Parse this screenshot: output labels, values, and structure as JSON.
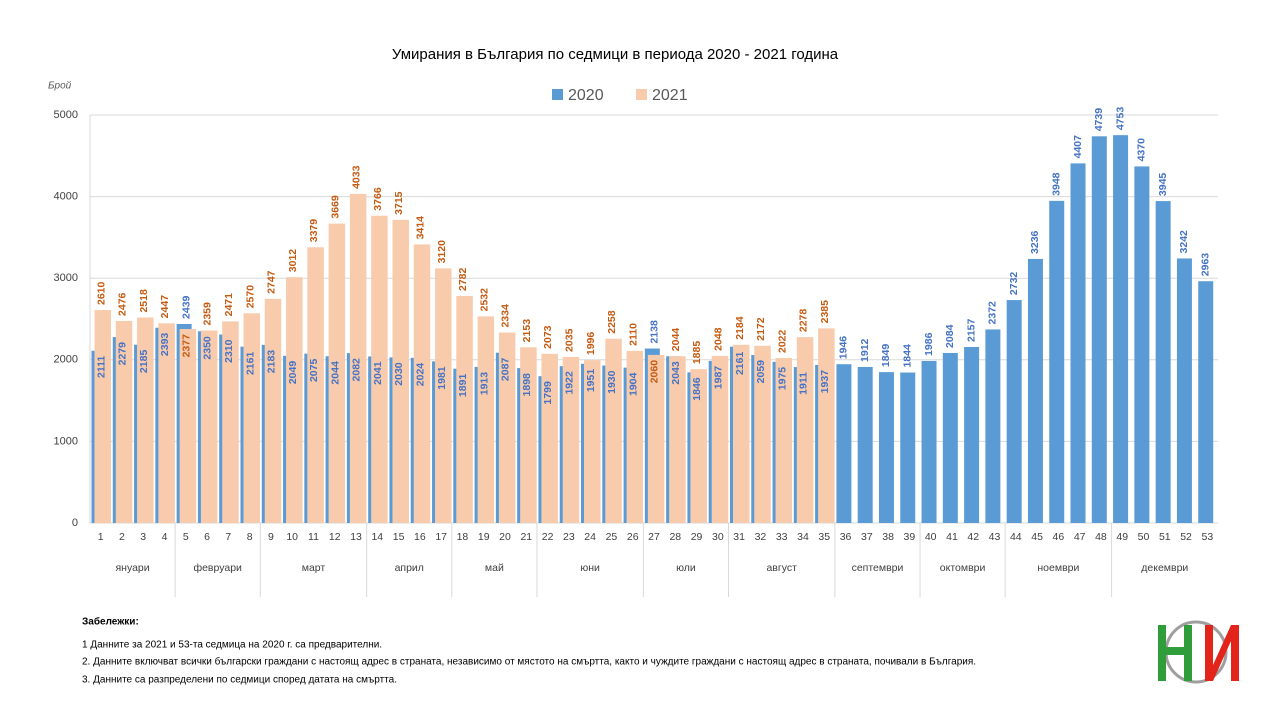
{
  "chart_data": {
    "type": "bar",
    "title": "Умирания в България по седмици в периода 2020 - 2021 година",
    "y_axis_label": "Брой",
    "categories": [
      "1",
      "2",
      "3",
      "4",
      "5",
      "6",
      "7",
      "8",
      "9",
      "10",
      "11",
      "12",
      "13",
      "14",
      "15",
      "16",
      "17",
      "18",
      "19",
      "20",
      "21",
      "22",
      "23",
      "24",
      "25",
      "26",
      "27",
      "28",
      "29",
      "30",
      "31",
      "32",
      "33",
      "34",
      "35",
      "36",
      "37",
      "38",
      "39",
      "40",
      "41",
      "42",
      "43",
      "44",
      "45",
      "46",
      "47",
      "48",
      "49",
      "50",
      "51",
      "52",
      "53"
    ],
    "months": [
      {
        "label": "януари",
        "first": 1,
        "last": 4
      },
      {
        "label": "февруари",
        "first": 5,
        "last": 8
      },
      {
        "label": "март",
        "first": 9,
        "last": 13
      },
      {
        "label": "април",
        "first": 14,
        "last": 17
      },
      {
        "label": "май",
        "first": 18,
        "last": 21
      },
      {
        "label": "юни",
        "first": 22,
        "last": 26
      },
      {
        "label": "юли",
        "first": 27,
        "last": 30
      },
      {
        "label": "август",
        "first": 31,
        "last": 35
      },
      {
        "label": "септември",
        "first": 36,
        "last": 39
      },
      {
        "label": "октомври",
        "first": 40,
        "last": 43
      },
      {
        "label": "ноември",
        "first": 44,
        "last": 48
      },
      {
        "label": "декември",
        "first": 49,
        "last": 53
      }
    ],
    "series": [
      {
        "name": "2020",
        "color": "#5b9bd5",
        "label_color": "#4472c4",
        "values": [
          2111,
          2279,
          2185,
          2393,
          2439,
          2350,
          2310,
          2161,
          2183,
          2049,
          2075,
          2044,
          2082,
          2041,
          2030,
          2024,
          1981,
          1891,
          1913,
          2087,
          1898,
          1799,
          1922,
          1951,
          1930,
          1904,
          2138,
          2043,
          1846,
          1987,
          2161,
          2059,
          1975,
          1911,
          1937,
          1946,
          1912,
          1849,
          1844,
          1986,
          2084,
          2157,
          2372,
          2732,
          3236,
          3948,
          4407,
          4739,
          4753,
          4370,
          3945,
          3242,
          2963
        ]
      },
      {
        "name": "2021",
        "color": "#f8cbad",
        "label_color": "#c55a11",
        "values": [
          2610,
          2476,
          2518,
          2447,
          2377,
          2359,
          2471,
          2570,
          2747,
          3012,
          3379,
          3669,
          4033,
          3766,
          3715,
          3414,
          3120,
          2782,
          2532,
          2334,
          2153,
          2073,
          2035,
          1996,
          2258,
          2110,
          2060,
          2044,
          1885,
          2048,
          2184,
          2172,
          2022,
          2278,
          2385,
          null,
          null,
          null,
          null,
          null,
          null,
          null,
          null,
          null,
          null,
          null,
          null,
          null,
          null,
          null,
          null,
          null,
          null
        ]
      }
    ],
    "ylim": [
      0,
      5000
    ],
    "yticks": [
      0,
      1000,
      2000,
      3000,
      4000,
      5000
    ],
    "grid": true,
    "legend": "top"
  },
  "notes": {
    "title": "Забележки:",
    "items": [
      "1   Данните за 2021 и 53-та седмица на 2020 г. са предварителни.",
      "2. Данните включват всички български граждани с настоящ адрес в страната, независимо от мястото на смъртта, както и чуждите граждани с настоящ адрес в страната, почивали в България.",
      "3. Данните са разпределени по седмици според  датата на смъртта."
    ]
  }
}
